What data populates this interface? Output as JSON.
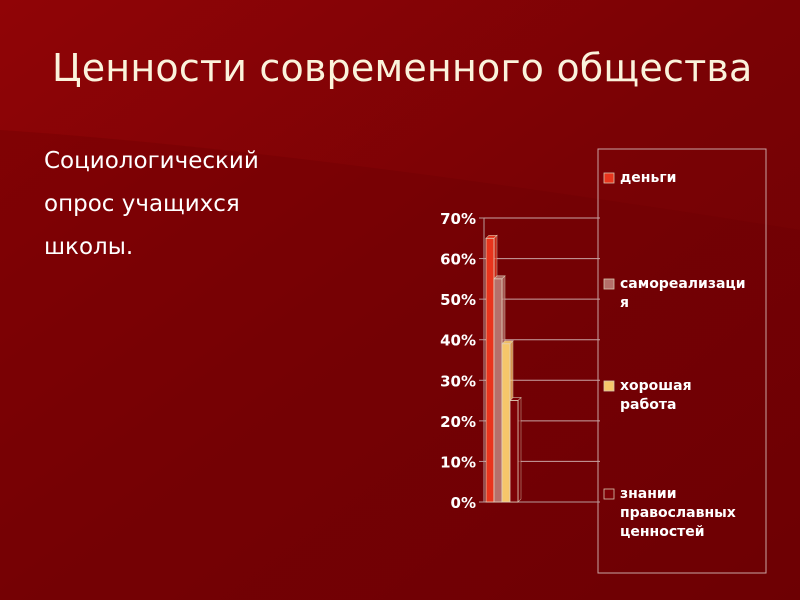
{
  "slide": {
    "title": "Ценности современного общества",
    "subtitle_lines": [
      "Социологический",
      "опрос учащихся",
      "школы."
    ]
  },
  "colors": {
    "background": "#7d0206",
    "title_text": "#fbf3dc",
    "chart_text": "#ffffff",
    "gridline": "#c9a3a3",
    "axis": "#b89a9a"
  },
  "chart_data": {
    "type": "bar",
    "title": "",
    "xlabel": "",
    "ylabel": "",
    "ylim": [
      0,
      0.7
    ],
    "yticks": [
      "0%",
      "10%",
      "20%",
      "30%",
      "40%",
      "50%",
      "60%",
      "70%"
    ],
    "grid": true,
    "legend_position": "right",
    "series": [
      {
        "name": "деньги",
        "value": 0.65,
        "color": "#e8341c"
      },
      {
        "name": "самореализация",
        "value": 0.55,
        "color": "#b5706a"
      },
      {
        "name": "хорошая работа",
        "value": 0.39,
        "color": "#f6c66a"
      },
      {
        "name": "знании православных ценностей",
        "value": 0.25,
        "color": "#7d0206"
      }
    ],
    "legend_lines": [
      [
        "деньги"
      ],
      [
        "самореализаци",
        "я"
      ],
      [
        "хорошая",
        "работа"
      ],
      [
        "знании",
        "православных",
        "ценностей"
      ]
    ]
  }
}
